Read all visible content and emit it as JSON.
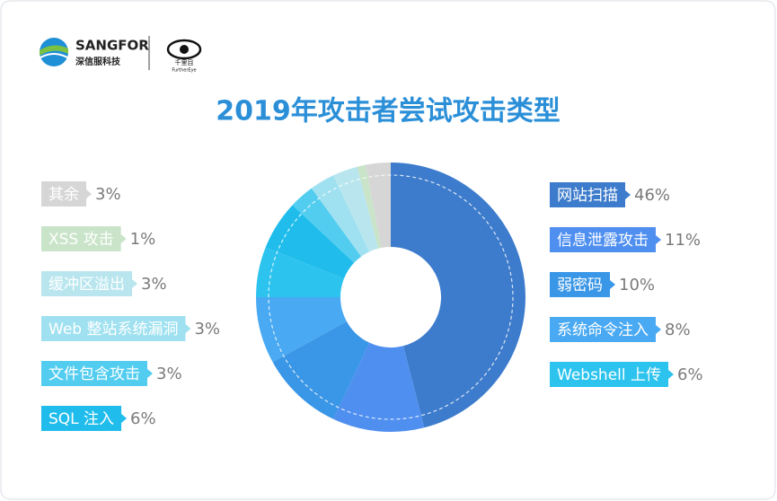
{
  "logo": {
    "brand": "SANGFOR",
    "brand_sub": "深信服科技",
    "eye": "千里目",
    "eye_sub": "FurtherEye"
  },
  "chart_data": {
    "type": "donut",
    "title": "2019年攻击者尝试攻击类型",
    "categories": [
      "网站扫描",
      "信息泄露攻击",
      "弱密码",
      "系统命令注入",
      "Webshell 上传",
      "SQL 注入",
      "文件包含攻击",
      "Web 整站系统漏洞",
      "缓冲区溢出",
      "XSS 攻击",
      "其余"
    ],
    "values": [
      46,
      11,
      10,
      8,
      6,
      6,
      3,
      3,
      3,
      1,
      3
    ],
    "value_labels": [
      "46%",
      "11%",
      "10%",
      "8%",
      "6%",
      "6%",
      "3%",
      "3%",
      "3%",
      "1%",
      "3%"
    ],
    "colors": [
      "#3d7ccc",
      "#4f8ff0",
      "#3a96e6",
      "#49a9f2",
      "#2cc3ee",
      "#20bdec",
      "#52cdf0",
      "#9fe1f0",
      "#b9e6ee",
      "#c9e4c9",
      "#d6d6d6"
    ]
  }
}
